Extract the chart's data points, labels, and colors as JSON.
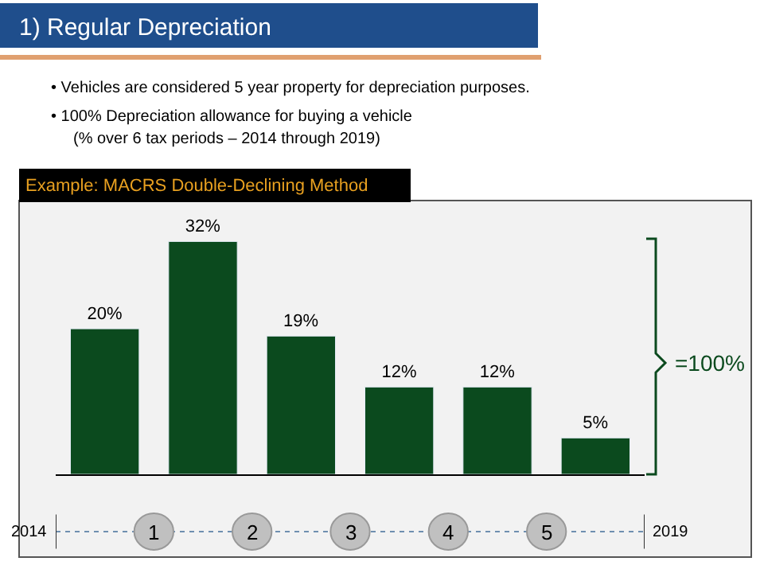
{
  "chart_data": {
    "type": "bar",
    "title": "Example: MACRS Double-Declining Method",
    "categories": [
      null,
      null,
      null,
      null,
      null,
      null
    ],
    "values": [
      20,
      32,
      19,
      12,
      12,
      5
    ],
    "color": "#0b4a1e",
    "value_labels": [
      "20%",
      "32%",
      "19%",
      "12%",
      "12%",
      "5%"
    ],
    "annotations": [
      "1) Regular Depreciation",
      "• Vehicles are considered 5 year property for depreciation purposes.",
      "• 100% Depreciation allowance for buying a vehicle",
      "(% over 6 tax periods – 2014 through 2019)",
      "=100%",
      "2014",
      "1",
      "2",
      "3",
      "4",
      "5",
      "2019"
    ],
    "legend": false
  }
}
